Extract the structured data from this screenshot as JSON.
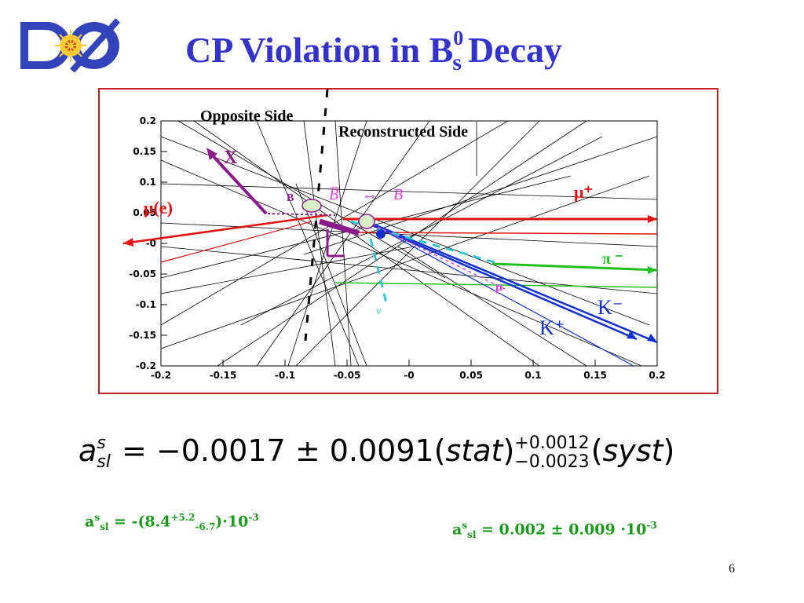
{
  "title": {
    "main": "CP Violation in B",
    "sup": "0",
    "sub": "s",
    "tail": "Decay"
  },
  "logo": {
    "text": "DØ"
  },
  "diagram": {
    "axis_ticks_y": [
      "0.2",
      "0.15",
      "0.1",
      "0.05",
      "-0",
      "-0.05",
      "-0.1",
      "-0.15",
      "-0.2"
    ],
    "axis_ticks_x": [
      "-0.2",
      "-0.15",
      "-0.1",
      "-0.05",
      "-0",
      "0.05",
      "0.1",
      "0.15",
      "0.2"
    ],
    "labels": {
      "opposite_side": "Opposite Side",
      "reconstructed_side": "Reconstructed Side",
      "x_label": "X",
      "mu_e": "μ(e)",
      "b_small": "B",
      "bbar_s0": "B̅",
      "oscillation": "↔",
      "b_s0": "B",
      "mu_plus": "μ⁺",
      "pi_minus": "π ⁻",
      "mu_small": "μ",
      "k_minus": "K⁻",
      "k_plus": "K⁺",
      "nu": "ν"
    },
    "colors": {
      "red": "#e01010",
      "blue": "#1030d0",
      "green": "#20c020",
      "purple": "#8b1a8b",
      "cyan": "#30c8d0",
      "magenta": "#e040e0",
      "border": "#c02020"
    }
  },
  "formula": {
    "a": "a",
    "sup": "s",
    "sub": "sl",
    "eq": "=",
    "value": "−0.0017",
    "pm": "±",
    "stat_err": "0.0091",
    "stat": "stat",
    "syst_up": "+0.0012",
    "syst_down": "−0.0023",
    "syst": "syst"
  },
  "result_left": {
    "a": "a",
    "sup": "s",
    "sub": "sl",
    "body": " = -(8.4",
    "up": "+5.2",
    "down": "-6.7",
    "tail": ")·10",
    "exp": "-3"
  },
  "result_right": {
    "a": "a",
    "sup": "s",
    "sub": "sl",
    "body": " = 0.002 ± 0.009 ·10",
    "exp": "-3"
  },
  "page_number": "6"
}
